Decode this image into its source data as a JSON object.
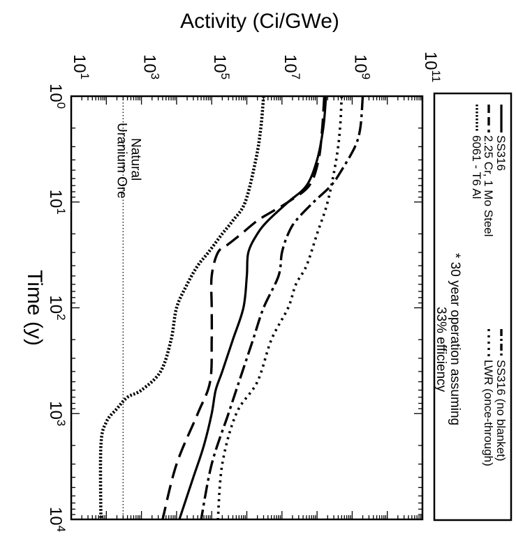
{
  "chart_data": {
    "type": "line",
    "title": "",
    "xlabel": "Time (y)",
    "ylabel": "Activity (Ci/GWe)",
    "x_scale": "log",
    "y_scale": "log",
    "xlim": [
      1,
      10000
    ],
    "ylim": [
      10,
      100000000000
    ],
    "x_ticks": [
      1,
      10,
      100,
      1000,
      10000
    ],
    "x_tick_labels": [
      {
        "base": "10",
        "exp": "0"
      },
      {
        "base": "10",
        "exp": "1"
      },
      {
        "base": "10",
        "exp": "2"
      },
      {
        "base": "10",
        "exp": "3"
      },
      {
        "base": "10",
        "exp": "4"
      }
    ],
    "y_ticks": [
      10,
      1000,
      100000,
      10000000,
      1000000000,
      100000000000
    ],
    "y_tick_labels": [
      {
        "base": "10",
        "exp": "1"
      },
      {
        "base": "10",
        "exp": "3"
      },
      {
        "base": "10",
        "exp": "5"
      },
      {
        "base": "10",
        "exp": "7"
      },
      {
        "base": "10",
        "exp": "9"
      },
      {
        "base": "10",
        "exp": "11"
      }
    ],
    "orientation": "rotated 90 degrees clockwise (time axis runs vertically)",
    "legend_position": "top (right edge of rotated figure)",
    "series": [
      {
        "name": "SS316",
        "style": "solid",
        "x": [
          1,
          2,
          4,
          7,
          10,
          15,
          20,
          30,
          50,
          100,
          200,
          400,
          600,
          1000,
          2000,
          4000,
          10000
        ],
        "y": [
          180000000,
          150000000,
          100000000,
          50000000,
          15000000,
          4000000,
          2000000,
          1100000,
          1000000,
          800000,
          400000,
          200000,
          130000,
          100000,
          60000,
          30000,
          12000
        ]
      },
      {
        "name": "2.25 Cr, 1 Mo Steel",
        "style": "dash",
        "x": [
          1,
          2,
          4,
          7,
          10,
          12,
          15,
          20,
          25,
          30,
          50,
          100,
          200,
          500,
          1000,
          3000,
          10000
        ],
        "y": [
          160000000,
          140000000,
          110000000,
          60000000,
          15000000,
          6000000,
          2000000,
          700000,
          300000,
          150000,
          100000,
          100000,
          100000,
          90000,
          40000,
          10000,
          4000
        ]
      },
      {
        "name": "6061 - T6 Al",
        "style": "dense-dot",
        "x": [
          1,
          2,
          4,
          10,
          15,
          20,
          30,
          40,
          60,
          100,
          200,
          400,
          600,
          700,
          900,
          1200,
          2000,
          10000
        ],
        "y": [
          3000000,
          2500000,
          1800000,
          900000,
          400000,
          200000,
          80000,
          40000,
          20000,
          10000,
          7000,
          3500,
          1000,
          400,
          200,
          100,
          70,
          70
        ]
      },
      {
        "name": "SS316 (no blanket)",
        "style": "dash-dot",
        "x": [
          1,
          2,
          3,
          5,
          7,
          10,
          15,
          20,
          30,
          50,
          100,
          200,
          500,
          1000,
          3000,
          10000
        ],
        "y": [
          2000000000,
          1700000000,
          1200000000,
          500000000,
          250000000,
          80000000,
          25000000,
          15000000,
          10000000,
          8000000,
          3000000,
          1500000,
          600000,
          300000,
          100000,
          50000
        ]
      },
      {
        "name": "LWR (once-through)",
        "style": "dot",
        "x": [
          1,
          2,
          4,
          10,
          20,
          40,
          60,
          100,
          200,
          500,
          1000,
          3000,
          10000
        ],
        "y": [
          500000000,
          450000000,
          350000000,
          200000000,
          100000000,
          50000000,
          25000000,
          15000000,
          5000000,
          2000000,
          500000,
          200000,
          150000
        ]
      }
    ],
    "reference_lines": [
      {
        "label_line1": "Natural",
        "label_line2": "Uranium Ore",
        "style": "fine-dot",
        "y": 300
      }
    ],
    "notes": [
      {
        "line1": "* 30 year operation assuming",
        "line2": "33% efficiency"
      }
    ]
  }
}
